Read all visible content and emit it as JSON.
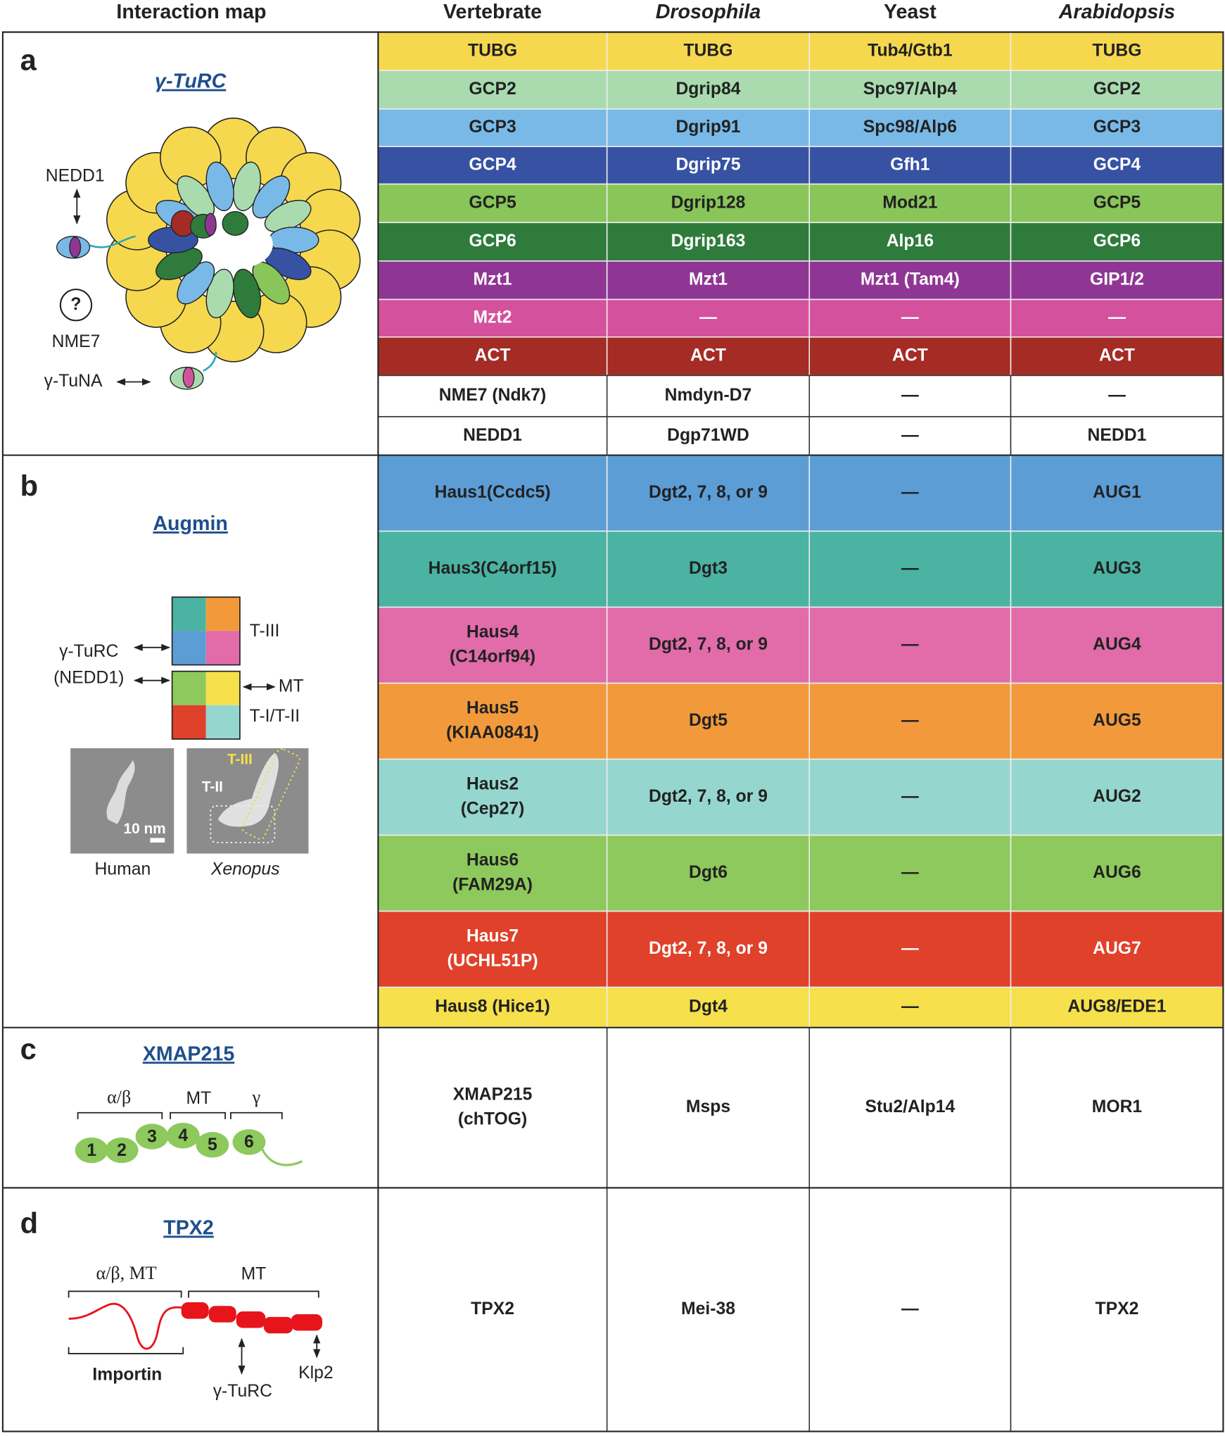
{
  "header": {
    "map_title": "Interaction map",
    "columns": [
      {
        "text": "Vertebrate",
        "italic": false
      },
      {
        "text": "Drosophila",
        "italic": true
      },
      {
        "text": "Yeast",
        "italic": false
      },
      {
        "text": "Arabidopsis",
        "italic": true
      }
    ]
  },
  "sections": [
    {
      "label": "a",
      "title": "γ-TuRC",
      "diagram": {
        "nedd1": "NEDD1",
        "unknown": "?",
        "nme7": "NME7",
        "tuna": "γ-TuNA"
      },
      "rows": [
        {
          "color": "#f6d84f",
          "text_color": "#222",
          "cells": [
            [
              "TUBG"
            ],
            [
              "TUBG"
            ],
            [
              "Tub4/Gtb1"
            ],
            [
              "TUBG"
            ]
          ]
        },
        {
          "color": "#a9dbaf",
          "text_color": "#222",
          "cells": [
            [
              "GCP2"
            ],
            [
              "Dgrip84"
            ],
            [
              "Spc97/Alp4"
            ],
            [
              "GCP2"
            ]
          ]
        },
        {
          "color": "#79b9e7",
          "text_color": "#222",
          "cells": [
            [
              "GCP3"
            ],
            [
              "Dgrip91"
            ],
            [
              "Spc98/Alp6"
            ],
            [
              "GCP3"
            ]
          ]
        },
        {
          "color": "#3752a3",
          "text_color": "#fff",
          "cells": [
            [
              "GCP4"
            ],
            [
              "Dgrip75"
            ],
            [
              "Gfh1"
            ],
            [
              "GCP4"
            ]
          ]
        },
        {
          "color": "#89c559",
          "text_color": "#222",
          "cells": [
            [
              "GCP5"
            ],
            [
              "Dgrip128"
            ],
            [
              "Mod21"
            ],
            [
              "GCP5"
            ]
          ]
        },
        {
          "color": "#2f7b3b",
          "text_color": "#fff",
          "cells": [
            [
              "GCP6"
            ],
            [
              "Dgrip163"
            ],
            [
              "Alp16"
            ],
            [
              "GCP6"
            ]
          ]
        },
        {
          "color": "#8f3694",
          "text_color": "#fff",
          "cells": [
            [
              "Mzt1"
            ],
            [
              "Mzt1"
            ],
            [
              "Mzt1 (Tam4)"
            ],
            [
              "GIP1/2"
            ]
          ]
        },
        {
          "color": "#d4529d",
          "text_color": "#fff",
          "cells": [
            [
              "Mzt2"
            ],
            [
              "—"
            ],
            [
              "—"
            ],
            [
              "—"
            ]
          ]
        },
        {
          "color": "#a52b25",
          "text_color": "#fff",
          "cells": [
            [
              "ACT"
            ],
            [
              "ACT"
            ],
            [
              "ACT"
            ],
            [
              "ACT"
            ]
          ]
        },
        {
          "color": "#ffffff",
          "text_color": "#222",
          "cells": [
            [
              "NME7 (Ndk7)"
            ],
            [
              "Nmdyn-D7"
            ],
            [
              "—"
            ],
            [
              "—"
            ]
          ]
        },
        {
          "color": "#ffffff",
          "text_color": "#222",
          "cells": [
            [
              "NEDD1"
            ],
            [
              "Dgp71WD"
            ],
            [
              "—"
            ],
            [
              "NEDD1"
            ]
          ]
        }
      ]
    },
    {
      "label": "b",
      "title": "Augmin",
      "diagram": {
        "t3": "T-III",
        "gturc": "γ-TuRC",
        "nedd1": "(NEDD1)",
        "mt": "MT",
        "t12": "T-I/T-II",
        "scale": "10 nm",
        "img_t3": "T-III",
        "img_t2": "T-II",
        "human": "Human",
        "xenopus": "Xenopus"
      },
      "rows": [
        {
          "color": "#5d9dd6",
          "text_color": "#222",
          "cells": [
            [
              "Haus1(Ccdc5)"
            ],
            [
              "Dgt2, 7, 8, or 9"
            ],
            [
              "—"
            ],
            [
              "AUG1"
            ]
          ]
        },
        {
          "color": "#4ab3a2",
          "text_color": "#222",
          "cells": [
            [
              "Haus3(C4orf15)"
            ],
            [
              "Dgt3"
            ],
            [
              "—"
            ],
            [
              "AUG3"
            ]
          ]
        },
        {
          "color": "#e16ca9",
          "text_color": "#222",
          "cells": [
            [
              "Haus4",
              "(C14orf94)"
            ],
            [
              "Dgt2, 7, 8, or 9"
            ],
            [
              "—"
            ],
            [
              "AUG4"
            ]
          ]
        },
        {
          "color": "#f29a3b",
          "text_color": "#222",
          "cells": [
            [
              "Haus5",
              "(KIAA0841)"
            ],
            [
              "Dgt5"
            ],
            [
              "—"
            ],
            [
              "AUG5"
            ]
          ]
        },
        {
          "color": "#95d7cf",
          "text_color": "#222",
          "cells": [
            [
              "Haus2",
              "(Cep27)"
            ],
            [
              "Dgt2, 7, 8, or 9"
            ],
            [
              "—"
            ],
            [
              "AUG2"
            ]
          ]
        },
        {
          "color": "#8dc95c",
          "text_color": "#222",
          "cells": [
            [
              "Haus6",
              "(FAM29A)"
            ],
            [
              "Dgt6"
            ],
            [
              "—"
            ],
            [
              "AUG6"
            ]
          ]
        },
        {
          "color": "#e0412a",
          "text_color": "#fff",
          "cells": [
            [
              "Haus7",
              "(UCHL51P)"
            ],
            [
              "Dgt2, 7, 8, or 9"
            ],
            [
              "—"
            ],
            [
              "AUG7"
            ]
          ]
        },
        {
          "color": "#f6e04b",
          "text_color": "#222",
          "cells": [
            [
              "Haus8 (Hice1)"
            ],
            [
              "Dgt4"
            ],
            [
              "—"
            ],
            [
              "AUG8/EDE1"
            ]
          ]
        }
      ]
    },
    {
      "label": "c",
      "title": "XMAP215",
      "diagram": {
        "ab": "α/β",
        "mt": "MT",
        "g": "γ",
        "domains": [
          "1",
          "2",
          "3",
          "4",
          "5",
          "6"
        ]
      },
      "rows": [
        {
          "color": "#ffffff",
          "text_color": "#222",
          "cells": [
            [
              "XMAP215",
              "(chTOG)"
            ],
            [
              "Msps"
            ],
            [
              "Stu2/Alp14"
            ],
            [
              "MOR1"
            ]
          ]
        }
      ]
    },
    {
      "label": "d",
      "title": "TPX2",
      "diagram": {
        "abmt": "α/β, MT",
        "mt": "MT",
        "importin": "Importin",
        "gturc": "γ-TuRC",
        "klp2": "Klp2"
      },
      "rows": [
        {
          "color": "#ffffff",
          "text_color": "#222",
          "cells": [
            [
              "TPX2"
            ],
            [
              "Mei-38"
            ],
            [
              "—"
            ],
            [
              "TPX2"
            ]
          ]
        }
      ]
    }
  ]
}
